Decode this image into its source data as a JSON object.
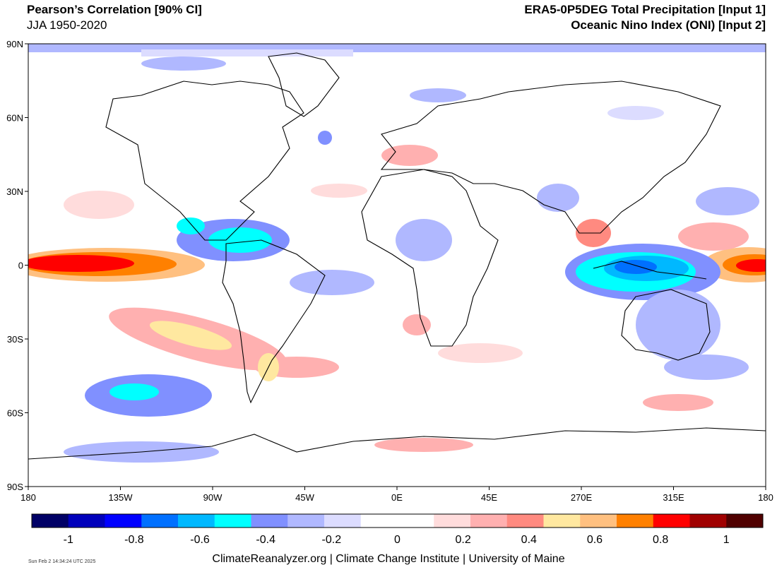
{
  "header": {
    "left_title": "Pearson’s Correlation [90% CI]",
    "left_subtitle": "JJA 1950-2020",
    "right_title": "ERA5-0P5DEG Total Precipitation [Input 1]",
    "right_subtitle": "Oceanic Nino Index (ONI) [Input 2]"
  },
  "map": {
    "lat_labels": [
      "90N",
      "60N",
      "30N",
      "0",
      "30S",
      "60S",
      "90S"
    ],
    "lon_labels": [
      "180",
      "135W",
      "90W",
      "45W",
      "0E",
      "45E",
      "270E",
      "315E",
      "180"
    ]
  },
  "colorbar": {
    "colors": [
      "#000066",
      "#0000bb",
      "#0000ff",
      "#0070ff",
      "#00b8ff",
      "#00ffff",
      "#8090ff",
      "#b0b8ff",
      "#dcdcff",
      "#ffffff",
      "#ffffff",
      "#ffdcdc",
      "#ffb0b0",
      "#ff8a80",
      "#ffe8a0",
      "#ffc080",
      "#ff8000",
      "#ff0000",
      "#a00000",
      "#500000"
    ],
    "tick_labels": [
      "-1",
      "-0.8",
      "-0.6",
      "-0.4",
      "-0.2",
      "0",
      "0.2",
      "0.4",
      "0.6",
      "0.8",
      "1"
    ]
  },
  "footer": {
    "timestamp": "Sun Feb  2 14:34:24 UTC 2025",
    "credit": "ClimateReanalyzer.org | Climate Change Institute | University of Maine"
  }
}
